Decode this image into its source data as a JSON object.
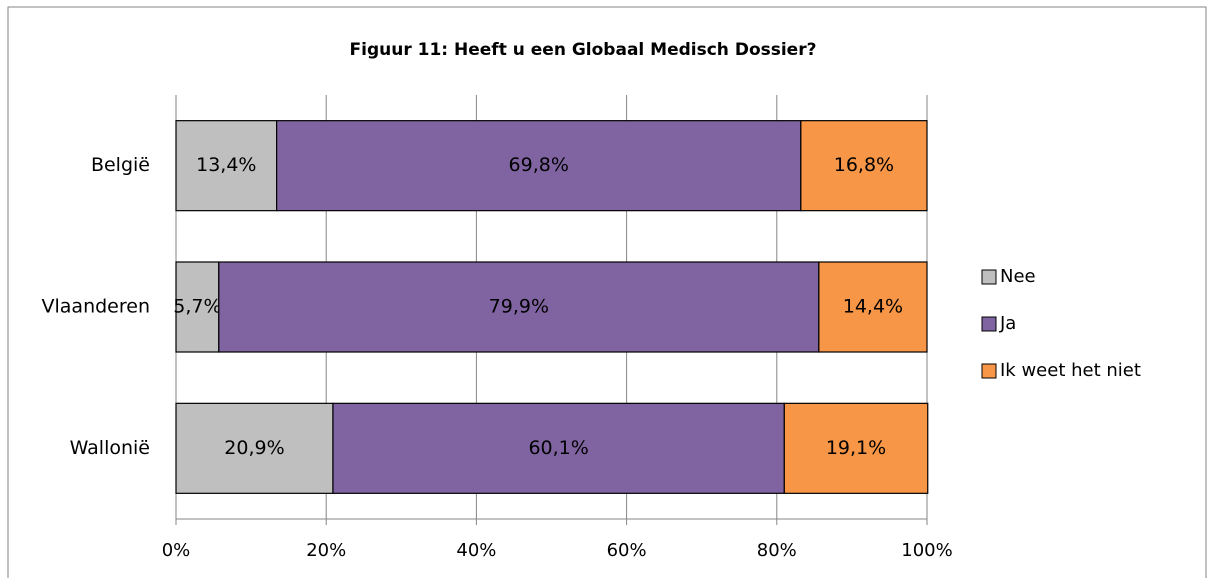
{
  "chart_data": {
    "type": "stacked-bar-horizontal",
    "title": "Figuur 11: Heeft u een Globaal Medisch Dossier?",
    "categories": [
      "België",
      "Vlaanderen",
      "Wallonië"
    ],
    "series": [
      {
        "name": "Nee",
        "color": "#bfbfbf",
        "values": [
          13.4,
          5.7,
          20.9
        ],
        "value_labels": [
          "13,4%",
          "5,7%",
          "20,9%"
        ]
      },
      {
        "name": "Ja",
        "color": "#8064a2",
        "values": [
          69.8,
          79.9,
          60.1
        ],
        "value_labels": [
          "69,8%",
          "79,9%",
          "60,1%"
        ]
      },
      {
        "name": "Ik weet het niet",
        "color": "#f79646",
        "values": [
          16.8,
          14.4,
          19.1
        ],
        "value_labels": [
          "16,8%",
          "14,4%",
          "19,1%"
        ]
      }
    ],
    "xlim": [
      0,
      100
    ],
    "xticks": [
      {
        "value": 0,
        "label": "0%"
      },
      {
        "value": 20,
        "label": "20%"
      },
      {
        "value": 40,
        "label": "40%"
      },
      {
        "value": 60,
        "label": "60%"
      },
      {
        "value": 80,
        "label": "80%"
      },
      {
        "value": 100,
        "label": "100%"
      }
    ],
    "grid": true,
    "legend": "right"
  }
}
